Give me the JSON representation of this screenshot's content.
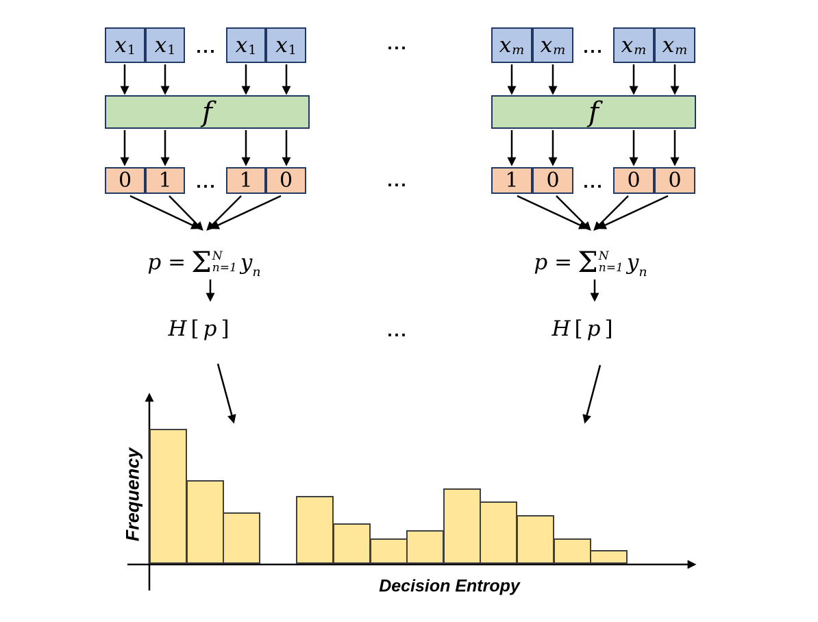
{
  "diagram": {
    "ellipsis": "...",
    "groups": [
      {
        "name": "left-branch",
        "input_base": "x",
        "input_sub": "1",
        "function_label": "f",
        "output_cells": [
          "0",
          "1",
          "1",
          "0"
        ]
      },
      {
        "name": "right-branch",
        "input_base": "x",
        "input_sub": "m",
        "function_label": "f",
        "output_cells": [
          "1",
          "0",
          "0",
          "0"
        ]
      }
    ]
  },
  "formula": {
    "lhs": "p =",
    "sigma": "Σ",
    "upper": "N",
    "lower": "n=1",
    "y": "y",
    "y_sub": "n"
  },
  "entropy": {
    "h": "H",
    "open": "[",
    "p": "p",
    "close": "]"
  },
  "chart_data": {
    "type": "bar",
    "title": "",
    "xlabel": "Decision Entropy",
    "ylabel": "Frequency",
    "x_tick_labels": "none",
    "y_tick_labels": "none",
    "grid": false,
    "legend": "none",
    "bins": 13,
    "values_rel": [
      1.0,
      0.62,
      0.38,
      0.0,
      0.5,
      0.3,
      0.19,
      0.25,
      0.56,
      0.46,
      0.36,
      0.19,
      0.1
    ],
    "ylim": [
      0,
      1.15
    ],
    "note": "histogram of H[p] decision entropies; unlabeled axes; fourth bin empty"
  },
  "colors": {
    "input_fill": "#b4c7e7",
    "output_fill": "#f8cbad",
    "function_fill": "#c5e0b4",
    "box_border": "#1f3864",
    "bar_fill": "#ffe699",
    "bar_border": "#404040",
    "arrow": "#000000",
    "background": "#ffffff"
  }
}
